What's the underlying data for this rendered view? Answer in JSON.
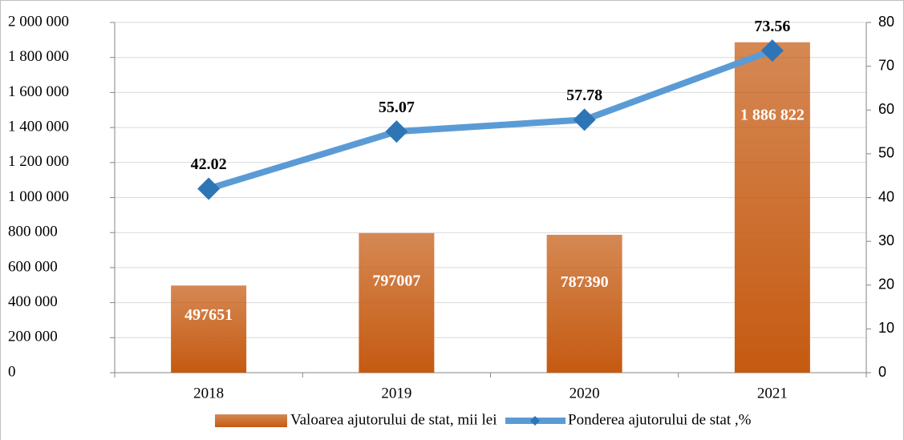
{
  "chart_data": {
    "type": "bar",
    "categories": [
      "2018",
      "2019",
      "2020",
      "2021"
    ],
    "series": [
      {
        "name": "Valoarea ajutorului de stat, mii lei",
        "type": "bar",
        "color": "#c55a11",
        "values": [
          497651,
          797007,
          787390,
          1886822
        ],
        "value_labels": [
          "497651",
          "797007",
          "787390",
          "1 886 822"
        ]
      },
      {
        "name": "Ponderea ajutorului de stat ,%",
        "type": "line",
        "color": "#5b9bd5",
        "marker_color": "#2e75b6",
        "axis": "y2",
        "values": [
          42.02,
          55.07,
          57.78,
          73.56
        ]
      }
    ],
    "ylim": [
      0,
      2000000
    ],
    "yticks": [
      0,
      {
        "value": 200000,
        "label": "200 000"
      },
      {
        "value": 400000,
        "label": "400 000"
      },
      {
        "value": 600000,
        "label": "600 000"
      },
      {
        "value": 800000,
        "label": "800 000"
      },
      {
        "value": 1000000,
        "label": "1 000 000"
      },
      {
        "value": 1200000,
        "label": "1 200 000"
      },
      {
        "value": 1400000,
        "label": "1 400 000"
      },
      {
        "value": 1600000,
        "label": "1 600 000"
      },
      {
        "value": 1800000,
        "label": "1 800 000"
      },
      {
        "value": 2000000,
        "label": "2 000 000"
      }
    ],
    "y2lim": [
      0,
      80
    ],
    "y2ticks": [
      0,
      10,
      20,
      30,
      40,
      50,
      60,
      70,
      80
    ],
    "grid": true,
    "legend": "bottom"
  }
}
